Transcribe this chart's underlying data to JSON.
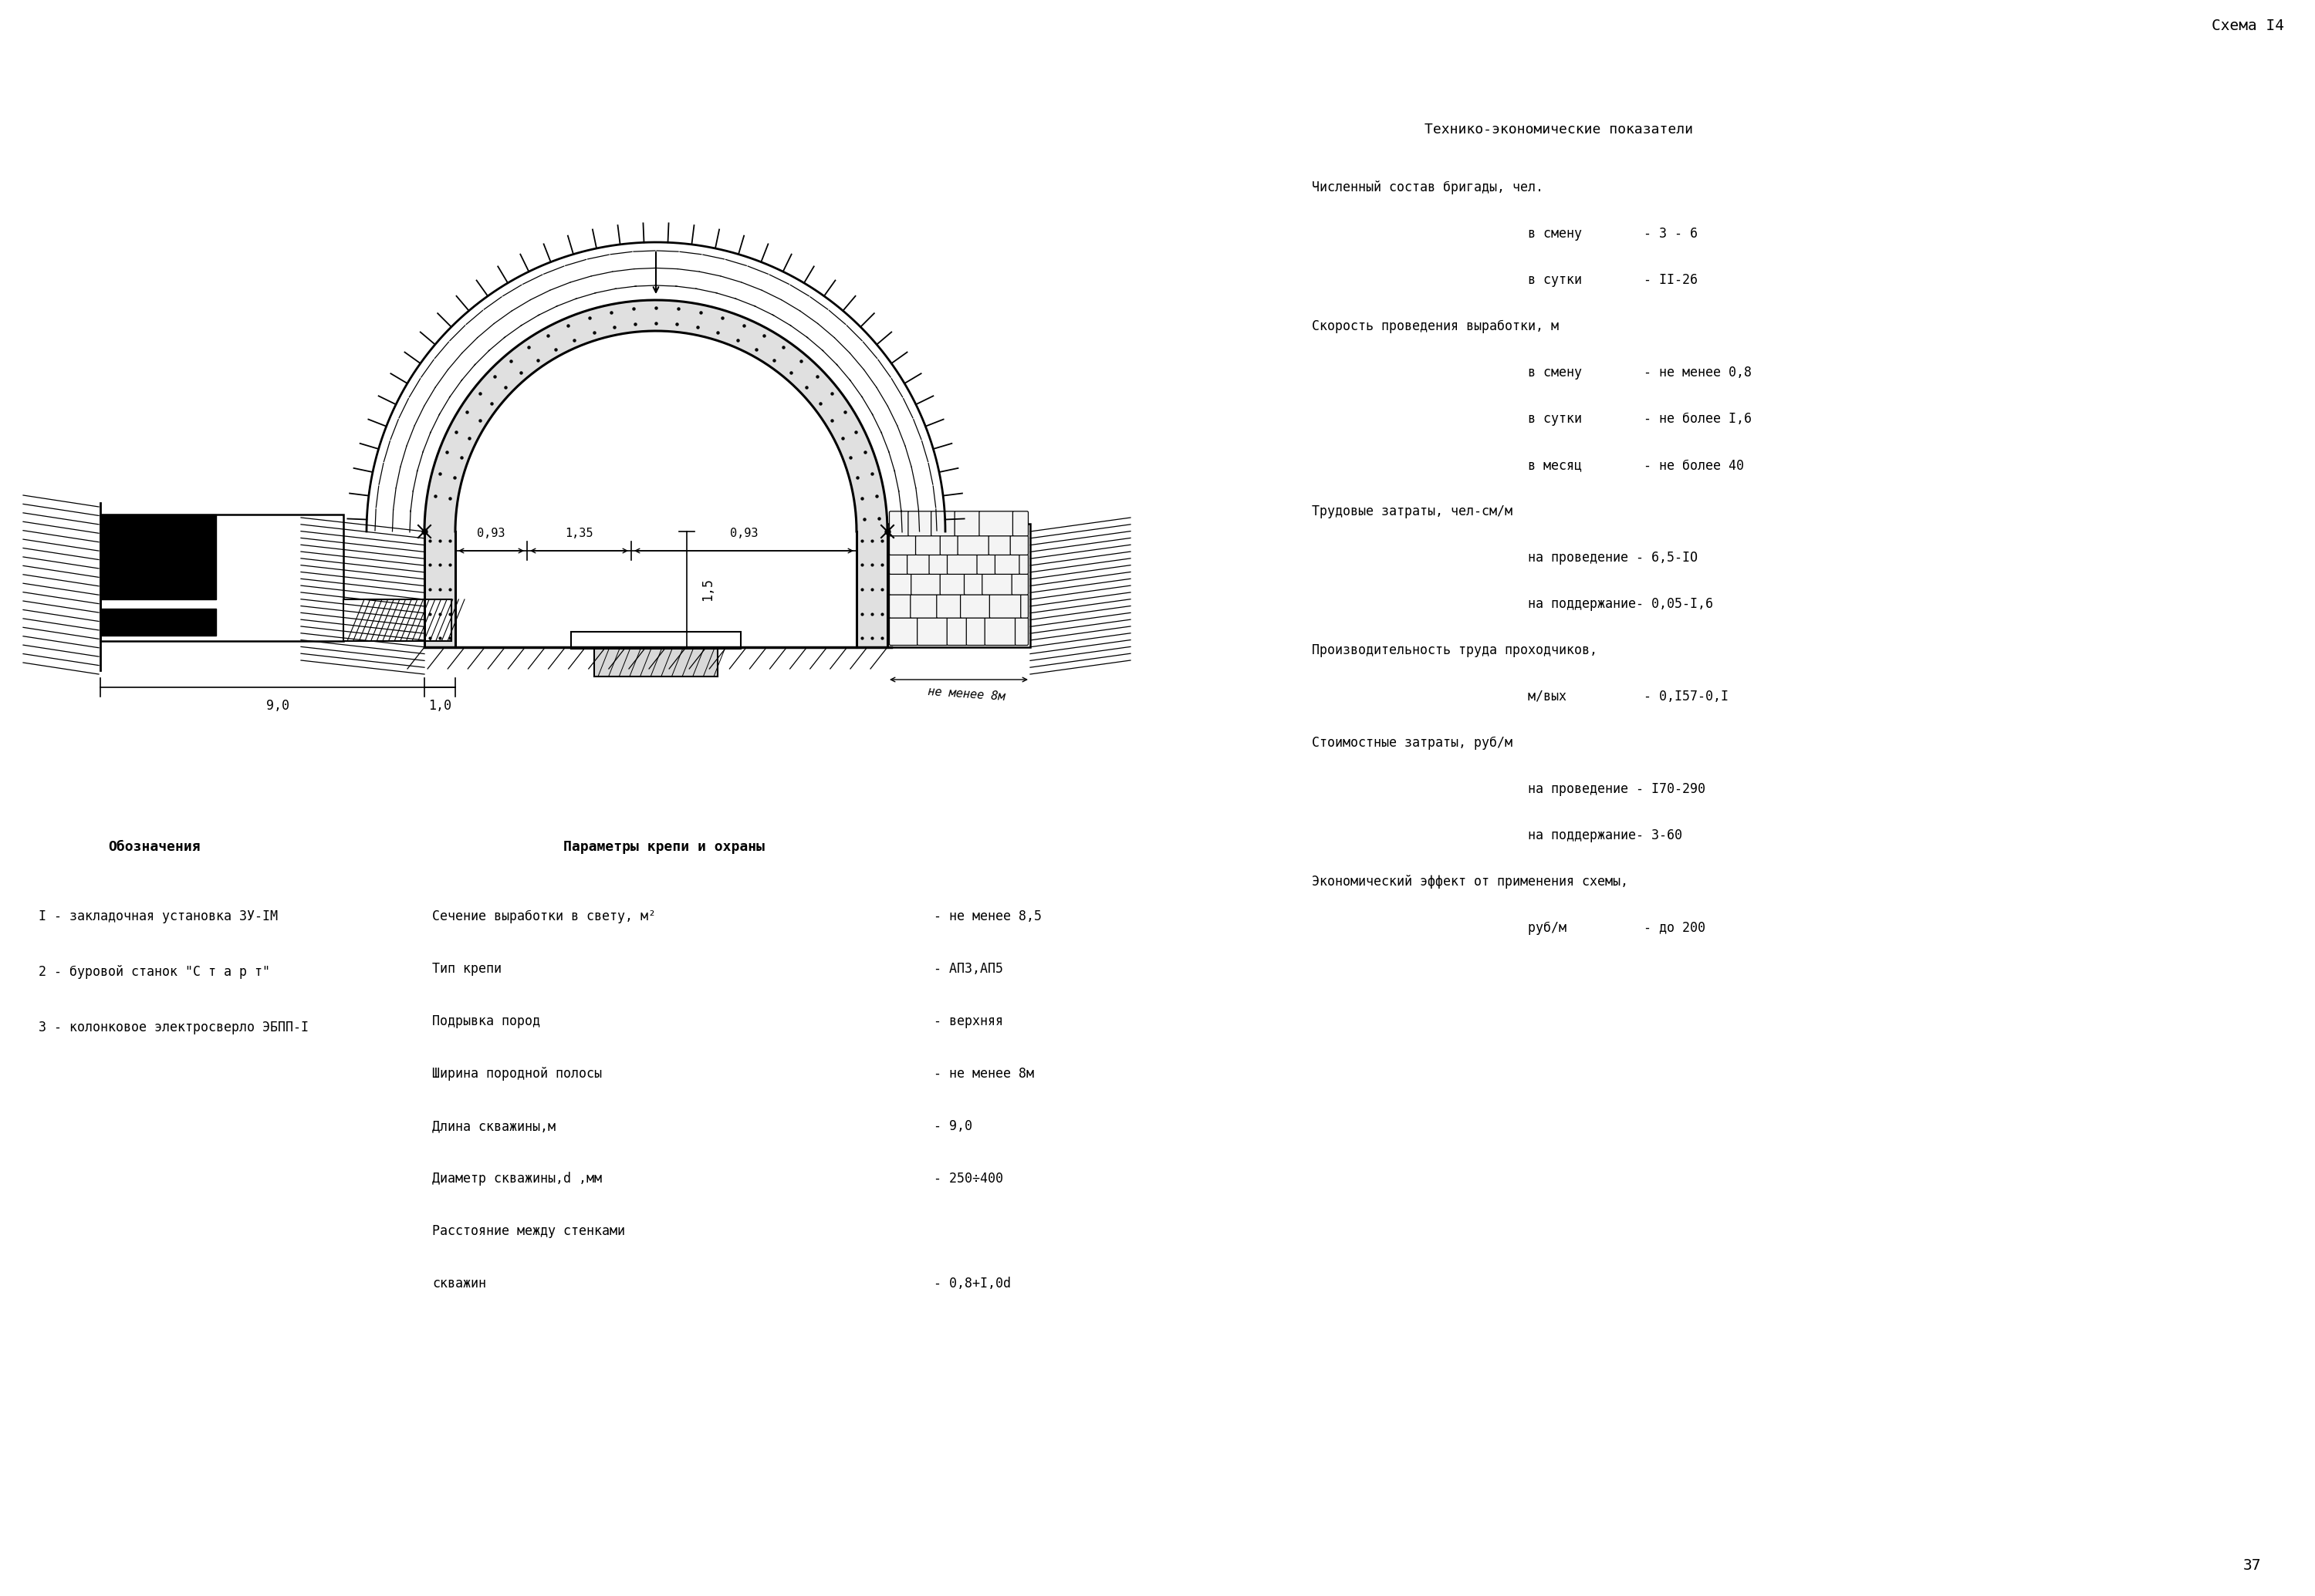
{
  "schema_label": "Схема I4",
  "page_number": "37",
  "bg_color": "#ffffff",
  "text_color": "#000000",
  "right_title": "Технико-экономические показатели",
  "right_col": [
    [
      "Численный состав бригады, чел.",
      false,
      0
    ],
    [
      "в смену        - 3 - 6",
      false,
      1
    ],
    [
      "в сутки        - II-26",
      false,
      1
    ],
    [
      "Скорость проведения выработки, м",
      false,
      0
    ],
    [
      "в смену        - не менее 0,8",
      false,
      1
    ],
    [
      "в сутки        - не более I,6",
      false,
      1
    ],
    [
      "в месяц        - не более 40",
      false,
      1
    ],
    [
      "Трудовые затраты, чел-см/м",
      false,
      0
    ],
    [
      "на проведение - 6,5-IO",
      false,
      1
    ],
    [
      "на поддержание- 0,05-I,6",
      false,
      1
    ],
    [
      "Производительность труда проходчиков,",
      false,
      0
    ],
    [
      "м/вых          - 0,I57-0,I",
      false,
      1
    ],
    [
      "Стоимостные затраты, руб/м",
      false,
      0
    ],
    [
      "на проведение - I70-290",
      false,
      1
    ],
    [
      "на поддержание- 3-60",
      false,
      1
    ],
    [
      "Экономический эффект от применения схемы,",
      false,
      0
    ],
    [
      "руб/м          - до 200",
      false,
      1
    ]
  ],
  "legend_title": "Обозначения",
  "legend_items": [
    "I - закладочная установка ЗУ-IM",
    "2 - буровой станок \"С т а р т\"",
    "3 - колонковое электросверло ЭБПП-I"
  ],
  "params_title": "Параметры крепи и охраны",
  "params_left": [
    "Сечение выработки в свету, м²",
    "Тип крепи",
    "Подрывка пород",
    "Ширина породной полосы",
    "Длина скважины,м",
    "Диаметр скважины,d ,мм",
    "Расстояние между стенками",
    "скважин"
  ],
  "params_right": [
    "- не менее 8,5",
    "- АП3,АП5",
    "- верхняя",
    "- не менее 8м",
    "- 9,0",
    "- 250÷400",
    "",
    "- 0,8+I,0d"
  ],
  "dim_093": "0,93",
  "dim_135": "1,35",
  "dim_093b": "0,93",
  "dim_15": "1,5",
  "dim_90": "9,0",
  "dim_10": "1,0",
  "label_ne_menee": "не менее 8м"
}
